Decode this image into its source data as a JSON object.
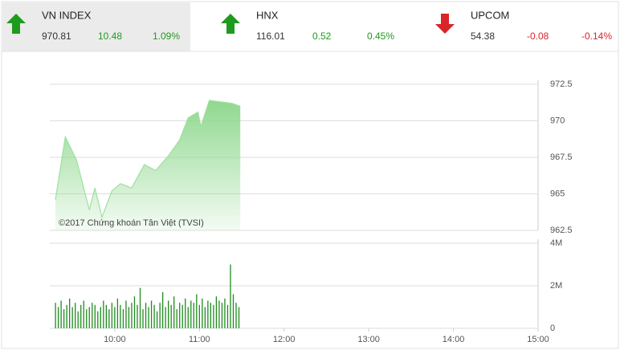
{
  "header": {
    "indices": [
      {
        "name": "VN INDEX",
        "value": "970.81",
        "change": "10.48",
        "percent": "1.09%",
        "direction": "up"
      },
      {
        "name": "HNX",
        "value": "116.01",
        "change": "0.52",
        "percent": "0.45%",
        "direction": "up"
      },
      {
        "name": "UPCOM",
        "value": "54.38",
        "change": "-0.08",
        "percent": "-0.14%",
        "direction": "down"
      }
    ]
  },
  "chart_data": [
    {
      "type": "area",
      "watermark": "©2017 Chứng khoán Tân Việt (TVSI)",
      "color": "#8fd88f",
      "x": [
        558,
        565,
        573,
        582,
        586,
        591,
        598,
        604,
        612,
        621,
        629,
        638,
        646,
        652,
        659,
        661,
        667,
        675,
        683,
        689
      ],
      "values": [
        964.6,
        968.9,
        967.3,
        963.9,
        965.4,
        963.4,
        965.2,
        965.7,
        965.4,
        967.0,
        966.6,
        967.6,
        968.7,
        970.2,
        970.6,
        969.6,
        971.4,
        971.3,
        971.2,
        971.0
      ],
      "xlim": [
        554,
        900
      ],
      "ylim": [
        962.5,
        972.5
      ],
      "yticks": [
        962.5,
        965,
        967.5,
        970,
        972.5
      ],
      "grid": true
    },
    {
      "type": "bar",
      "color": "#1e8c1e",
      "x": [
        558,
        560,
        562,
        564,
        566,
        568,
        570,
        572,
        574,
        576,
        578,
        580,
        582,
        584,
        586,
        588,
        590,
        592,
        594,
        596,
        598,
        600,
        602,
        604,
        606,
        608,
        610,
        612,
        614,
        616,
        618,
        620,
        622,
        624,
        626,
        628,
        630,
        632,
        634,
        636,
        638,
        640,
        642,
        644,
        646,
        648,
        650,
        652,
        654,
        656,
        658,
        660,
        662,
        664,
        666,
        668,
        670,
        672,
        674,
        676,
        678,
        680,
        682,
        684,
        686,
        688
      ],
      "values": [
        1.2,
        1.0,
        1.3,
        0.9,
        1.1,
        1.4,
        1.0,
        1.2,
        0.8,
        1.1,
        1.3,
        0.9,
        1.0,
        1.2,
        1.1,
        0.8,
        1.0,
        1.3,
        1.1,
        0.9,
        1.2,
        1.0,
        1.4,
        1.1,
        0.9,
        1.3,
        1.0,
        1.2,
        1.5,
        1.1,
        1.9,
        0.9,
        1.2,
        1.0,
        1.3,
        1.1,
        0.8,
        1.2,
        1.7,
        1.0,
        1.3,
        1.1,
        1.5,
        0.9,
        1.2,
        1.1,
        1.4,
        1.0,
        1.3,
        1.2,
        1.6,
        1.1,
        1.4,
        1.0,
        1.3,
        1.2,
        1.1,
        1.5,
        1.3,
        1.2,
        1.4,
        1.1,
        3.0,
        1.6,
        1.2,
        1.0
      ],
      "xlim": [
        554,
        900
      ],
      "xticks": [
        {
          "value": 600,
          "label": "10:00"
        },
        {
          "value": 660,
          "label": "11:00"
        },
        {
          "value": 720,
          "label": "12:00"
        },
        {
          "value": 780,
          "label": "13:00"
        },
        {
          "value": 840,
          "label": "14:00"
        },
        {
          "value": 900,
          "label": "15:00"
        }
      ],
      "ylim": [
        0,
        4
      ],
      "yticks": [
        0,
        {
          "value": 2,
          "label": "2M"
        },
        {
          "value": 4,
          "label": "4M"
        }
      ],
      "grid": true
    }
  ]
}
